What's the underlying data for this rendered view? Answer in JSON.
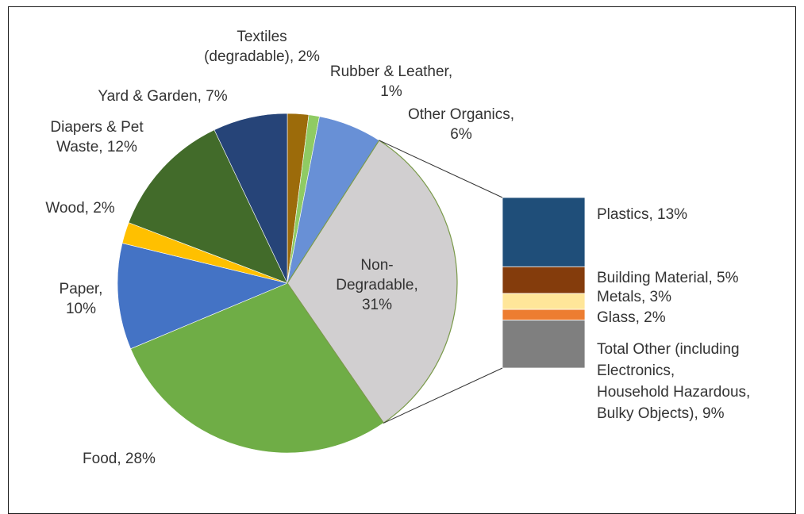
{
  "chart_data": {
    "type": "pie",
    "title": "",
    "slices": [
      {
        "label_lines": [
          "Textiles",
          "(degradable), 2%"
        ],
        "value": 2,
        "color": "#9C6B0A"
      },
      {
        "label_lines": [
          "Rubber & Leather,",
          "1%"
        ],
        "value": 1,
        "color": "#8FCB63"
      },
      {
        "label_lines": [
          "Other Organics,",
          "6%"
        ],
        "value": 6,
        "color": "#6890D6"
      },
      {
        "label_lines": [
          "Non-",
          "Degradable,",
          "31%"
        ],
        "value": 31,
        "color": "#D1CFD0"
      },
      {
        "label_lines": [
          "Food, 28%"
        ],
        "value": 28,
        "color": "#6FAD46"
      },
      {
        "label_lines": [
          "Paper,",
          "10%"
        ],
        "value": 10,
        "color": "#4473C5"
      },
      {
        "label_lines": [
          "Wood, 2%"
        ],
        "value": 2,
        "color": "#FFC000"
      },
      {
        "label_lines": [
          "Diapers & Pet",
          "Waste, 12%"
        ],
        "value": 12,
        "color": "#426B2A"
      },
      {
        "label_lines": [
          "Yard & Garden, 7%"
        ],
        "value": 7,
        "color": "#264478"
      }
    ],
    "breakdown": {
      "parent": "Non-Degradable",
      "items": [
        {
          "label_lines": [
            "Plastics, 13%"
          ],
          "value": 13,
          "color": "#1F4E79"
        },
        {
          "label_lines": [
            "Building Material, 5%"
          ],
          "value": 5,
          "color": "#843C0C"
        },
        {
          "label_lines": [
            "Metals, 3%"
          ],
          "value": 3,
          "color": "#FFE699"
        },
        {
          "label_lines": [
            "Glass, 2%"
          ],
          "value": 2,
          "color": "#ED7D31"
        },
        {
          "label_lines": [
            "Total Other (including",
            "Electronics,",
            "Household Hazardous,",
            "Bulky Objects), 9%"
          ],
          "value": 9,
          "color": "#7F7F7F"
        }
      ]
    }
  }
}
